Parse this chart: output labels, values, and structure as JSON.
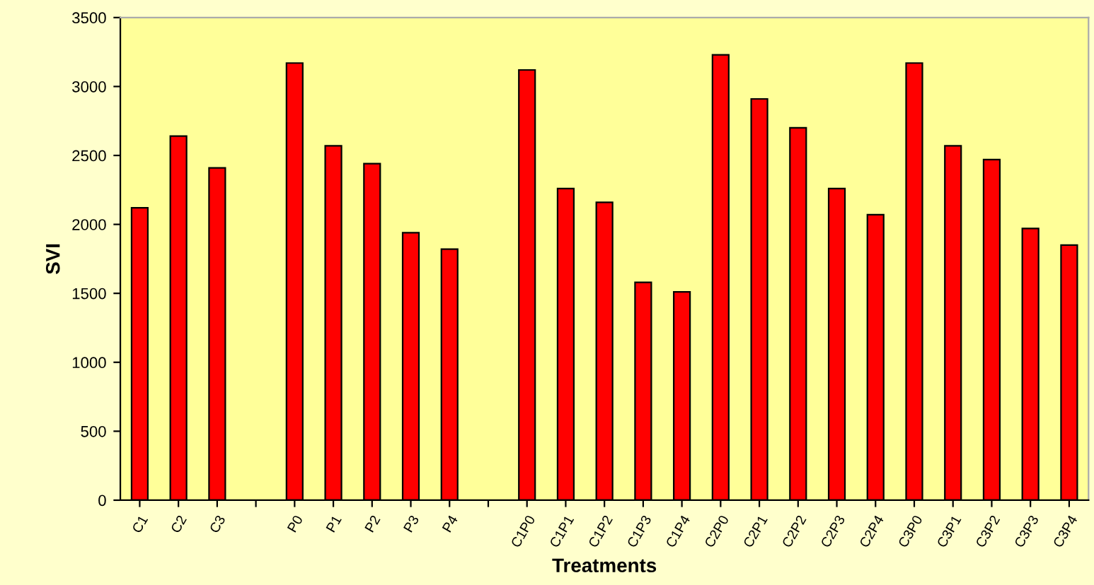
{
  "chart_data": {
    "type": "bar",
    "xlabel": "Treatments",
    "ylabel": "SVI",
    "categories": [
      "C1",
      "C2",
      "C3",
      null,
      "P0",
      "P1",
      "P2",
      "P3",
      "P4",
      null,
      "C1P0",
      "C1P1",
      "C1P2",
      "C1P3",
      "C1P4",
      "C2P0",
      "C2P1",
      "C2P2",
      "C2P3",
      "C2P4",
      "C3P0",
      "C3P1",
      "C3P2",
      "C3P3",
      "C3P4"
    ],
    "values": [
      2120,
      2640,
      2410,
      null,
      3170,
      2570,
      2440,
      1940,
      1820,
      null,
      3120,
      2260,
      2160,
      1580,
      1510,
      3230,
      2910,
      2700,
      2260,
      2070,
      3170,
      2570,
      2470,
      1970,
      1850
    ],
    "color": "#ff0000",
    "ylim": [
      0,
      3500
    ],
    "yticks": [
      0,
      500,
      1000,
      1500,
      2000,
      2500,
      3000,
      3500
    ],
    "grid": false,
    "legend": false
  }
}
